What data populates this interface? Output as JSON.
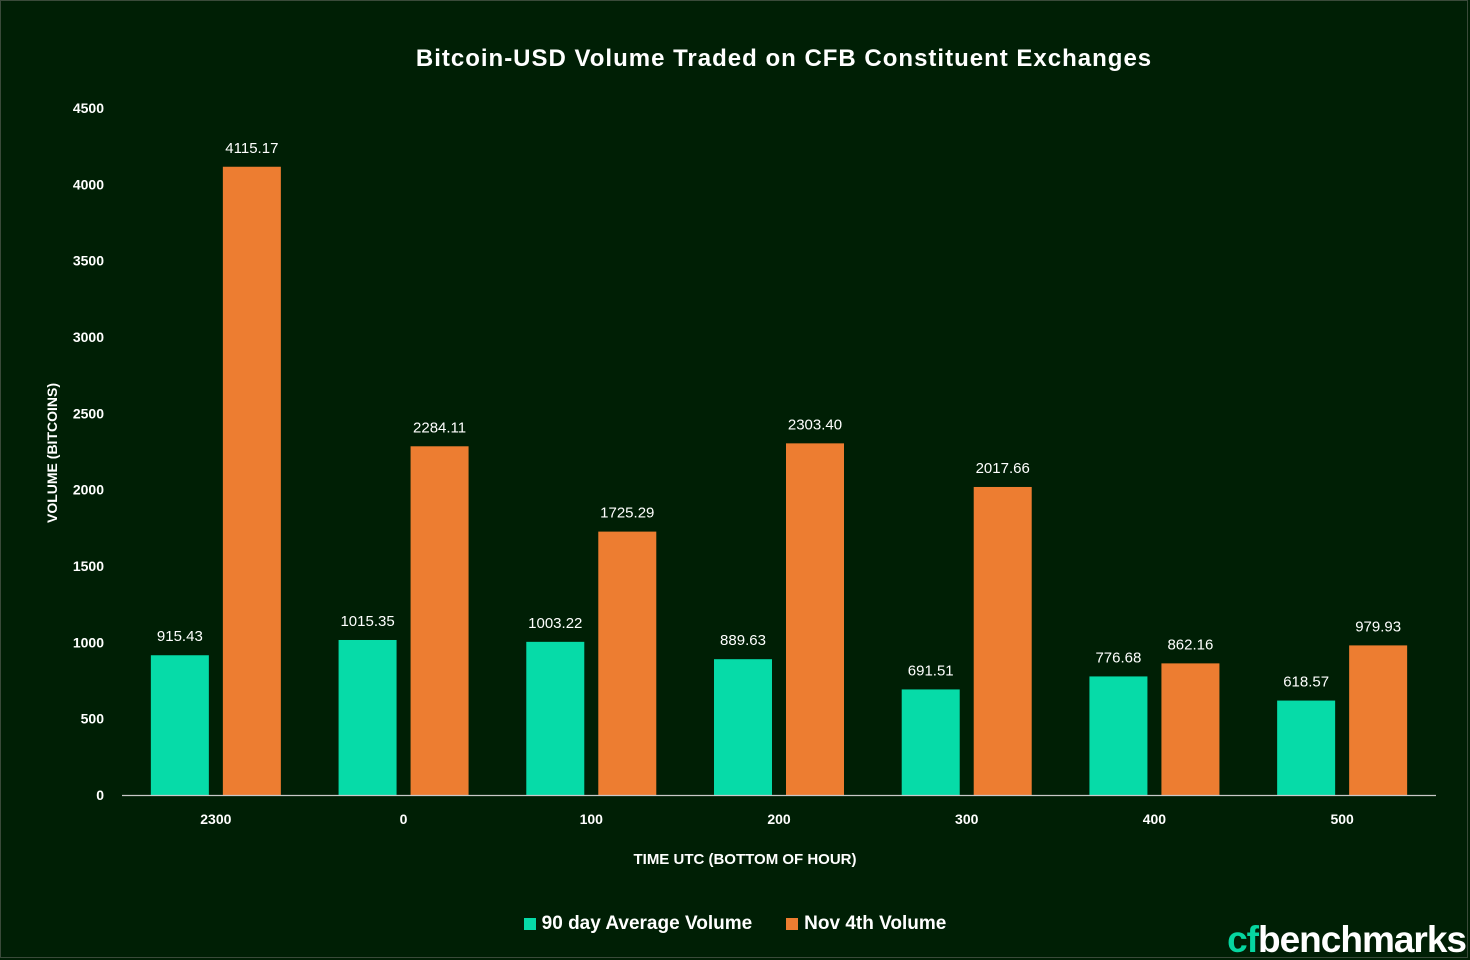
{
  "chart_data": {
    "type": "bar",
    "title": "Bitcoin-USD Volume Traded on CFB Constituent Exchanges",
    "xlabel": "TIME UTC (BOTTOM OF HOUR)",
    "ylabel": "VOLUME (BITCOINS)",
    "ylim": [
      0,
      4500
    ],
    "yticks": [
      "0",
      "500",
      "1000",
      "1500",
      "2000",
      "2500",
      "3000",
      "3500",
      "4000",
      "4500"
    ],
    "categories": [
      "2300",
      "0",
      "100",
      "200",
      "300",
      "400",
      "500"
    ],
    "series": [
      {
        "name": "90 day Average Volume",
        "color": "#06dba8",
        "values": [
          915.43,
          1015.35,
          1003.22,
          889.63,
          691.51,
          776.68,
          618.57
        ],
        "labels": [
          "915.43",
          "1015.35",
          "1003.22",
          "889.63",
          "691.51",
          "776.68",
          "618.57"
        ]
      },
      {
        "name": "Nov 4th Volume",
        "color": "#ed7d31",
        "values": [
          4115.17,
          2284.11,
          1725.29,
          2303.4,
          2017.66,
          862.16,
          979.93
        ],
        "labels": [
          "4115.17",
          "2284.11",
          "1725.29",
          "2303.40",
          "2017.66",
          "862.16",
          "979.93"
        ]
      }
    ],
    "grid": false,
    "legend_position": "bottom"
  },
  "logo": {
    "cf": "cf",
    "rest": "benchmarks"
  }
}
